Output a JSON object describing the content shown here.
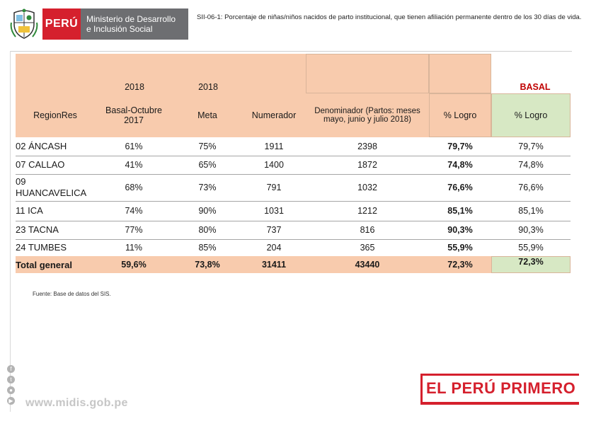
{
  "header": {
    "brand_country": "PERÚ",
    "brand_line1": "Ministerio de Desarrollo",
    "brand_line2": "e Inclusión Social",
    "title": "SII-06-1: Porcentaje de niñas/niños nacidos de parto institucional, que tienen afiliación permanente dentro de los 30 días de vida."
  },
  "table": {
    "group_headers": {
      "year_basal": "2018",
      "year_meta": "2018",
      "basal": "BASAL"
    },
    "columns": [
      "RegionRes",
      "Basal-Octubre 2017",
      "Meta",
      "Numerador",
      "Denominador (Partos: meses mayo, junio y julio 2018)",
      "% Logro",
      "% Logro"
    ],
    "rows": [
      {
        "region": "02 ÁNCASH",
        "basal": "61%",
        "meta": "75%",
        "num": "1911",
        "den": "2398",
        "logro": "79,7%",
        "logro_basal": "79,7%"
      },
      {
        "region": "07 CALLAO",
        "basal": "41%",
        "meta": "65%",
        "num": "1400",
        "den": "1872",
        "logro": "74,8%",
        "logro_basal": "74,8%"
      },
      {
        "region": "09 HUANCAVELICA",
        "basal": "68%",
        "meta": "73%",
        "num": "791",
        "den": "1032",
        "logro": "76,6%",
        "logro_basal": "76,6%"
      },
      {
        "region": "11 ICA",
        "basal": "74%",
        "meta": "90%",
        "num": "1031",
        "den": "1212",
        "logro": "85,1%",
        "logro_basal": "85,1%"
      },
      {
        "region": "23 TACNA",
        "basal": "77%",
        "meta": "80%",
        "num": "737",
        "den": "816",
        "logro": "90,3%",
        "logro_basal": "90,3%"
      },
      {
        "region": "24 TUMBES",
        "basal": "11%",
        "meta": "85%",
        "num": "204",
        "den": "365",
        "logro": "55,9%",
        "logro_basal": "55,9%"
      }
    ],
    "total": {
      "region": "Total general",
      "basal": "59,6%",
      "meta": "73,8%",
      "num": "31411",
      "den": "43440",
      "logro": "72,3%",
      "logro_basal": "72,3%"
    }
  },
  "source": "Fuente: Base de datos del SIS.",
  "footer": {
    "website": "www.midis.gob.pe",
    "slogan": "EL PERÚ PRIMERO",
    "social_icons": [
      "facebook-icon",
      "twitter-icon",
      "flickr-icon",
      "youtube-icon"
    ]
  },
  "colors": {
    "accent_red": "#d5202d",
    "header_peach": "#f8cbad",
    "basal_green": "#d7e8c4",
    "basal_title": "#c00000"
  }
}
